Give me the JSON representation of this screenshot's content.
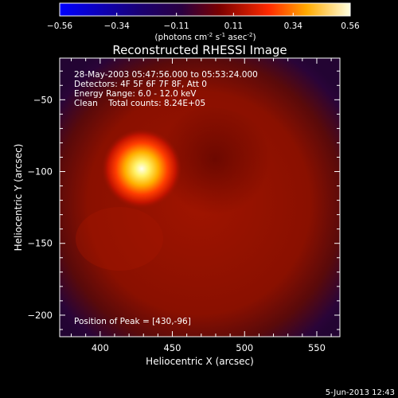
{
  "chart_data": {
    "type": "heatmap",
    "title": "Reconstructed RHESSI Image",
    "xlabel": "Heliocentric X (arcsec)",
    "ylabel": "Heliocentric Y (arcsec)",
    "xlim": [
      372,
      566
    ],
    "ylim": [
      -215,
      -21
    ],
    "x_ticks": [
      400,
      450,
      500,
      550
    ],
    "y_ticks": [
      -50,
      -100,
      -150,
      -200
    ],
    "colorbar": {
      "ticks": [
        -0.56,
        -0.34,
        -0.11,
        0.11,
        0.34,
        0.56
      ],
      "range": [
        -0.56,
        0.56
      ],
      "unit_text": "(photons cm",
      "unit_exp1": "-2",
      "unit_mid": " s",
      "unit_exp2": "-1",
      "unit_mid2": " asec",
      "unit_exp3": "-2",
      "unit_close": ")",
      "colormap": [
        "#0000ff",
        "#000000",
        "#ff0000",
        "#ffff00",
        "#ffffff"
      ]
    },
    "peak": {
      "x": 430,
      "y": -96,
      "value": 0.56
    },
    "annotations": [
      "28-May-2003 05:47:56.000 to 05:53:24.000",
      "Detectors: 4F 5F 6F 7F 8F, Att 0",
      "Energy Range: 6.0 - 12.0 keV",
      "Clean    Total counts: 8.24E+05",
      "Position of Peak = [430,-96]"
    ],
    "timestamp": "5-Jun-2013 12:43"
  }
}
